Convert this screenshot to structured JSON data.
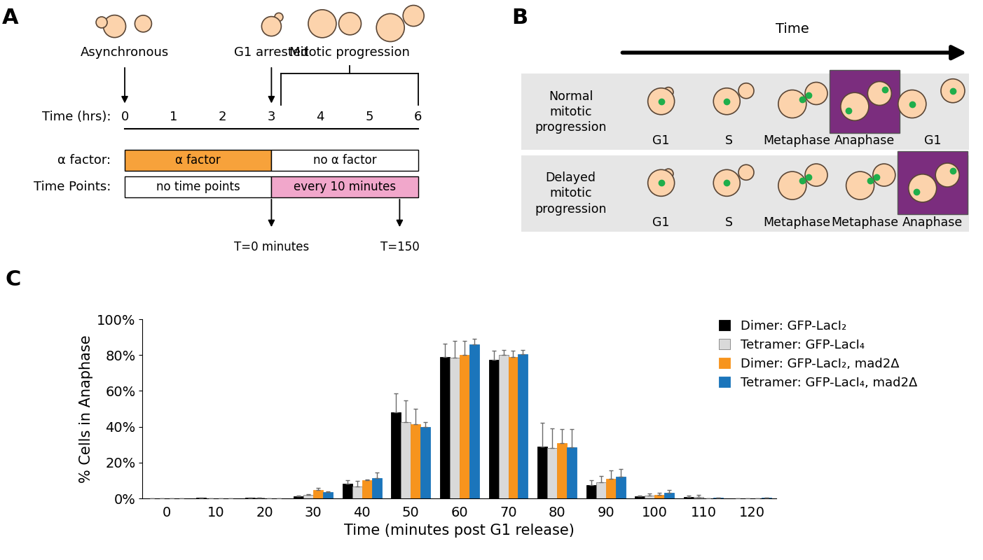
{
  "panel_A": {
    "letter": "A",
    "cell_labels": [
      "Asynchronous",
      "G1 arrested",
      "Mitotic progression"
    ],
    "time_row_label": "Time (hrs):",
    "hours": [
      0,
      1,
      2,
      3,
      4,
      5,
      6
    ],
    "alpha_row_label": "α factor:",
    "alpha_on": "α factor",
    "alpha_off": "no α factor",
    "timepoints_row_label": "Time Points:",
    "timepoints_off": "no time points",
    "timepoints_on": "every 10 minutes",
    "start_label": "T=0 minutes",
    "end_label": "T=150"
  },
  "panel_B": {
    "letter": "B",
    "arrow_label": "Time",
    "rows": [
      {
        "label": "Normal mitotic progression",
        "stages": [
          "G1",
          "S",
          "Metaphase",
          "Anaphase",
          "G1"
        ]
      },
      {
        "label": "Delayed mitotic progression",
        "stages": [
          "G1",
          "S",
          "Metaphase",
          "Metaphase",
          "Anaphase"
        ]
      }
    ]
  },
  "chart_data": {
    "type": "bar",
    "letter": "C",
    "x_label": "Time (minutes post G1 release)",
    "y_label": "% Cells in Anaphase",
    "categories": [
      "0",
      "10",
      "20",
      "30",
      "40",
      "50",
      "60",
      "70",
      "80",
      "90",
      "100",
      "110",
      "120"
    ],
    "ylim": [
      0,
      100
    ],
    "yticks": [
      {
        "value": 0,
        "label": "0%"
      },
      {
        "value": 20,
        "label": "20%"
      },
      {
        "value": 40,
        "label": "40%"
      },
      {
        "value": 60,
        "label": "60%"
      },
      {
        "value": 80,
        "label": "80%"
      },
      {
        "value": 100,
        "label": "100%"
      }
    ],
    "legend": "upper right",
    "grid": false,
    "series": [
      {
        "name": "Dimer: GFP-LacI₂",
        "color": "#000000",
        "values": [
          0,
          0.2,
          0.5,
          1.0,
          8.3,
          48,
          79,
          77.5,
          29,
          7.5,
          1.0,
          0.7,
          0
        ],
        "errors": [
          0,
          0,
          0,
          0.7,
          2.0,
          10.5,
          7.5,
          5.0,
          13,
          2.5,
          0.6,
          0.8,
          0
        ]
      },
      {
        "name": "Tetramer: GFP-LacI₄",
        "color": "#d9d9d9",
        "values": [
          0,
          0,
          0.4,
          1.8,
          6.8,
          42.5,
          78.5,
          80,
          28,
          9,
          1.7,
          0.8,
          0
        ],
        "errors": [
          0,
          0,
          0,
          0.6,
          3.0,
          12,
          9.5,
          3.0,
          11,
          3.5,
          1.2,
          1.0,
          0
        ]
      },
      {
        "name": "Dimer: GFP-LacI₂, mad2Δ",
        "color": "#f7941d",
        "values": [
          0,
          0,
          0,
          4.5,
          10,
          41.5,
          80,
          79,
          31,
          11,
          2.0,
          0,
          0
        ],
        "errors": [
          0,
          0,
          0,
          1.5,
          0.5,
          8.5,
          8.0,
          3.5,
          7.5,
          4.5,
          1.0,
          0,
          0
        ]
      },
      {
        "name": "Tetramer: GFP-LacI₄, mad2Δ",
        "color": "#1b75bb",
        "values": [
          0,
          0,
          0,
          3.7,
          11.5,
          40,
          86,
          80.5,
          28.5,
          12,
          3.0,
          0.5,
          0.2
        ],
        "errors": [
          0,
          0,
          0,
          0.4,
          3.0,
          2.5,
          3.0,
          2.5,
          10,
          4.5,
          1.5,
          0,
          0
        ]
      }
    ]
  }
}
